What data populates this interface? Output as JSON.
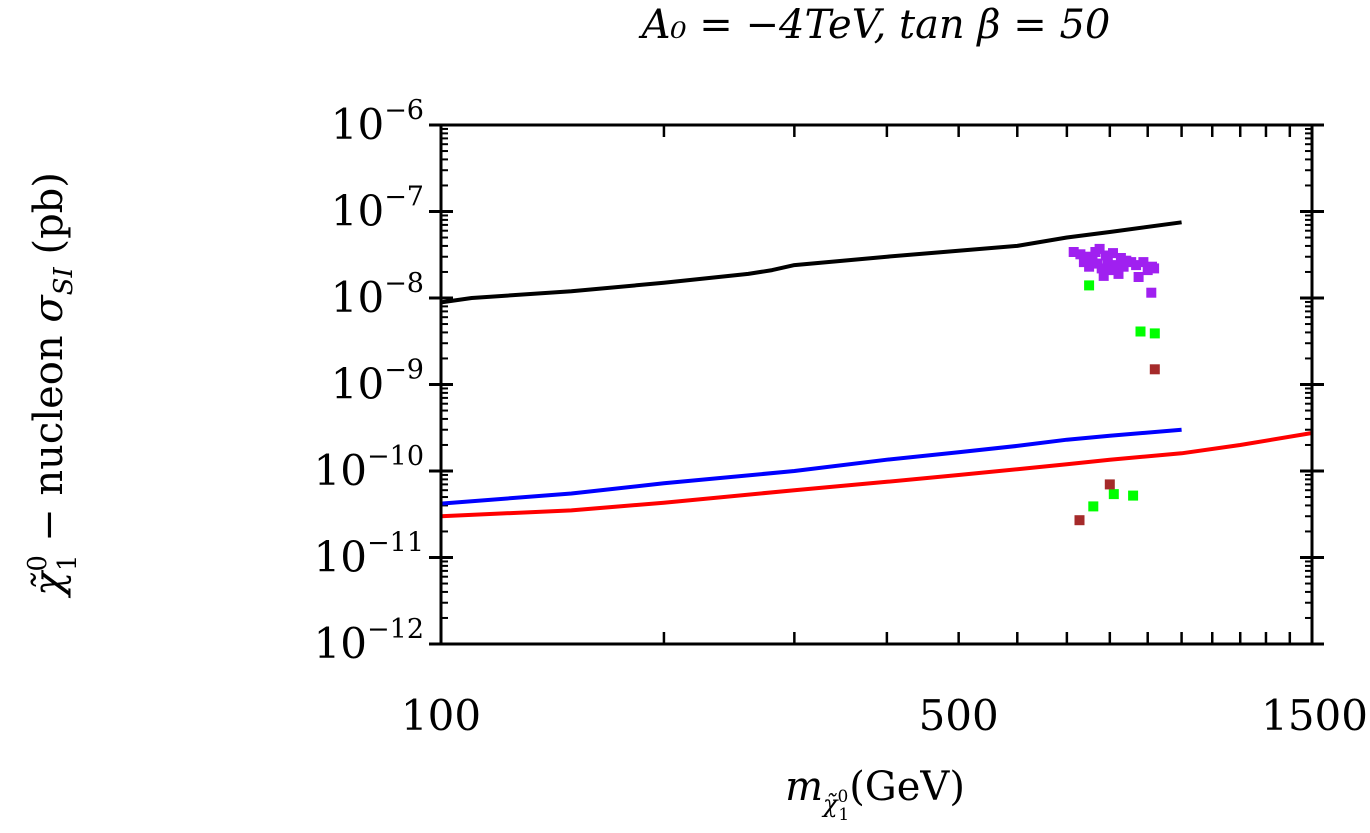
{
  "chart_data": {
    "type": "scatter",
    "title": "A₀ = −4TeV, tan β = 50",
    "xlabel": "m_χ̃₁⁰ (GeV)",
    "ylabel": "χ̃₁⁰ − nucleon σ_SI (pb)",
    "xlabel_parts": {
      "base": "m",
      "sub": "χ̃",
      "subsup": "0",
      "subsub": "1",
      "unit": "(GeV)"
    },
    "ylabel_parts": {
      "chi": "χ̃",
      "chi_sup": "0",
      "chi_sub": "1",
      "text": " − nucleon ",
      "sigma": "σ",
      "sigma_sub": "SI",
      "unit": " (pb)"
    },
    "x_scale": "log",
    "y_scale": "log",
    "xlim": [
      100,
      1500
    ],
    "ylim": [
      1e-12,
      1e-06
    ],
    "x_tick_labels": [
      {
        "value": 100,
        "label": "100"
      },
      {
        "value": 500,
        "label": "500"
      },
      {
        "value": 1500,
        "label": "1500"
      }
    ],
    "y_tick_labels": [
      {
        "value": 1e-06,
        "base": "10",
        "exp": "−6"
      },
      {
        "value": 1e-07,
        "base": "10",
        "exp": "−7"
      },
      {
        "value": 1e-08,
        "base": "10",
        "exp": "−8"
      },
      {
        "value": 1e-09,
        "base": "10",
        "exp": "−9"
      },
      {
        "value": 1e-10,
        "base": "10",
        "exp": "−10"
      },
      {
        "value": 1e-11,
        "base": "10",
        "exp": "−11"
      },
      {
        "value": 1e-12,
        "base": "10",
        "exp": "−12"
      }
    ],
    "lines": [
      {
        "name": "black-limit",
        "color": "#000000",
        "x": [
          100,
          110,
          150,
          200,
          260,
          280,
          300,
          400,
          600,
          700,
          800,
          1000
        ],
        "y": [
          8.9e-09,
          1e-08,
          1.2e-08,
          1.5e-08,
          1.9e-08,
          2.1e-08,
          2.4e-08,
          3e-08,
          4e-08,
          5e-08,
          5.8e-08,
          7.5e-08
        ]
      },
      {
        "name": "blue-limit",
        "color": "#0000ff",
        "x": [
          100,
          150,
          200,
          300,
          400,
          500,
          600,
          700,
          800,
          1000
        ],
        "y": [
          4.2e-11,
          5.5e-11,
          7.2e-11,
          1e-10,
          1.35e-10,
          1.65e-10,
          1.95e-10,
          2.3e-10,
          2.55e-10,
          3e-10
        ]
      },
      {
        "name": "red-limit",
        "color": "#ff0000",
        "x": [
          100,
          150,
          200,
          300,
          400,
          500,
          600,
          700,
          800,
          1000,
          1200,
          1500
        ],
        "y": [
          3e-11,
          3.5e-11,
          4.3e-11,
          6e-11,
          7.5e-11,
          9e-11,
          1.05e-10,
          1.2e-10,
          1.35e-10,
          1.6e-10,
          2e-10,
          2.75e-10
        ]
      }
    ],
    "points": [
      {
        "series": "purple",
        "color": "#a020f0",
        "x": 715,
        "y": 3.4e-08
      },
      {
        "series": "purple",
        "color": "#a020f0",
        "x": 730,
        "y": 3.2e-08
      },
      {
        "series": "purple",
        "color": "#a020f0",
        "x": 738,
        "y": 2.6e-08
      },
      {
        "series": "purple",
        "color": "#a020f0",
        "x": 745,
        "y": 3e-08
      },
      {
        "series": "purple",
        "color": "#a020f0",
        "x": 750,
        "y": 2.3e-08
      },
      {
        "series": "purple",
        "color": "#a020f0",
        "x": 758,
        "y": 2.8e-08
      },
      {
        "series": "purple",
        "color": "#a020f0",
        "x": 765,
        "y": 3.4e-08
      },
      {
        "series": "purple",
        "color": "#a020f0",
        "x": 770,
        "y": 2.5e-08
      },
      {
        "series": "purple",
        "color": "#a020f0",
        "x": 775,
        "y": 3.7e-08
      },
      {
        "series": "purple",
        "color": "#a020f0",
        "x": 780,
        "y": 2.2e-08
      },
      {
        "series": "purple",
        "color": "#a020f0",
        "x": 785,
        "y": 1.8e-08
      },
      {
        "series": "purple",
        "color": "#a020f0",
        "x": 790,
        "y": 3.1e-08
      },
      {
        "series": "purple",
        "color": "#a020f0",
        "x": 795,
        "y": 2.7e-08
      },
      {
        "series": "purple",
        "color": "#a020f0",
        "x": 800,
        "y": 2.1e-08
      },
      {
        "series": "purple",
        "color": "#a020f0",
        "x": 808,
        "y": 3.3e-08
      },
      {
        "series": "purple",
        "color": "#a020f0",
        "x": 815,
        "y": 2.4e-08
      },
      {
        "series": "purple",
        "color": "#a020f0",
        "x": 822,
        "y": 1.9e-08
      },
      {
        "series": "purple",
        "color": "#a020f0",
        "x": 828,
        "y": 2.9e-08
      },
      {
        "series": "purple",
        "color": "#a020f0",
        "x": 835,
        "y": 2.3e-08
      },
      {
        "series": "purple",
        "color": "#a020f0",
        "x": 842,
        "y": 2.7e-08
      },
      {
        "series": "purple",
        "color": "#a020f0",
        "x": 855,
        "y": 2.6e-08
      },
      {
        "series": "purple",
        "color": "#a020f0",
        "x": 868,
        "y": 2.4e-08
      },
      {
        "series": "purple",
        "color": "#a020f0",
        "x": 875,
        "y": 1.75e-08
      },
      {
        "series": "purple",
        "color": "#a020f0",
        "x": 888,
        "y": 2.6e-08
      },
      {
        "series": "purple",
        "color": "#a020f0",
        "x": 900,
        "y": 2.1e-08
      },
      {
        "series": "purple",
        "color": "#a020f0",
        "x": 912,
        "y": 2.3e-08
      },
      {
        "series": "purple",
        "color": "#a020f0",
        "x": 918,
        "y": 2.2e-08
      },
      {
        "series": "purple",
        "color": "#a020f0",
        "x": 910,
        "y": 1.15e-08
      },
      {
        "series": "green",
        "color": "#00ff00",
        "x": 750,
        "y": 1.4e-08
      },
      {
        "series": "green",
        "color": "#00ff00",
        "x": 880,
        "y": 4.1e-09
      },
      {
        "series": "green",
        "color": "#00ff00",
        "x": 920,
        "y": 3.9e-09
      },
      {
        "series": "green",
        "color": "#00ff00",
        "x": 760,
        "y": 3.9e-11
      },
      {
        "series": "green",
        "color": "#00ff00",
        "x": 810,
        "y": 5.4e-11
      },
      {
        "series": "green",
        "color": "#00ff00",
        "x": 860,
        "y": 5.2e-11
      },
      {
        "series": "brown",
        "color": "#a52a2a",
        "x": 920,
        "y": 1.5e-09
      },
      {
        "series": "brown",
        "color": "#a52a2a",
        "x": 800,
        "y": 7e-11
      },
      {
        "series": "brown",
        "color": "#a52a2a",
        "x": 728,
        "y": 2.7e-11
      }
    ]
  }
}
